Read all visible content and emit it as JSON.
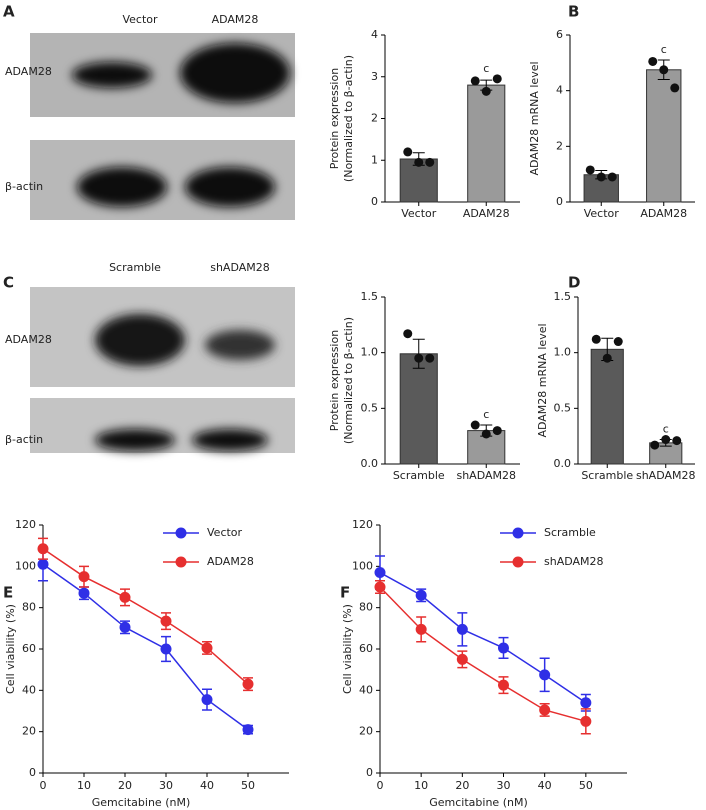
{
  "panel_labels": [
    "A",
    "B",
    "C",
    "D",
    "E",
    "F"
  ],
  "blots": [
    {
      "lanes": [
        "Vector",
        "ADAM28"
      ],
      "rows": [
        "ADAM28",
        "β-actin"
      ]
    },
    {
      "lanes": [
        "Scramble",
        "shADAM28"
      ],
      "rows": [
        "ADAM28",
        "β-actin"
      ]
    }
  ],
  "chart_data": [
    {
      "type": "bar",
      "ylabel": [
        "Protein expression",
        "(Normalized to β-actin)"
      ],
      "categories": [
        "Vector",
        "ADAM28"
      ],
      "values": [
        1.03,
        2.8
      ],
      "errors": [
        0.15,
        0.12
      ],
      "points": [
        [
          1.2,
          0.95,
          0.95
        ],
        [
          2.9,
          2.65,
          2.95
        ]
      ],
      "colors": [
        "#5a5a5a",
        "#9a9a9a"
      ],
      "annotation": "c",
      "ylim": [
        0,
        4
      ],
      "yticks": [
        0,
        1,
        2,
        3,
        4
      ]
    },
    {
      "type": "bar",
      "ylabel": [
        "ADAM28 mRNA level"
      ],
      "categories": [
        "Vector",
        "ADAM28"
      ],
      "values": [
        0.98,
        4.75
      ],
      "errors": [
        0.15,
        0.35
      ],
      "points": [
        [
          1.15,
          0.9,
          0.9
        ],
        [
          5.05,
          4.75,
          4.1
        ]
      ],
      "colors": [
        "#5a5a5a",
        "#9a9a9a"
      ],
      "annotation": "c",
      "ylim": [
        0,
        6
      ],
      "yticks": [
        0,
        2,
        4,
        6
      ]
    },
    {
      "type": "bar",
      "ylabel": [
        "Protein expression",
        "(Normalized to β-actin)"
      ],
      "categories": [
        "Scramble",
        "shADAM28"
      ],
      "values": [
        0.99,
        0.3
      ],
      "errors": [
        0.13,
        0.05
      ],
      "points": [
        [
          1.17,
          0.95,
          0.95
        ],
        [
          0.35,
          0.27,
          0.3
        ]
      ],
      "colors": [
        "#5a5a5a",
        "#9a9a9a"
      ],
      "annotation": "c",
      "ylim": [
        0,
        1.5
      ],
      "yticks": [
        {
          "value": 0,
          "label": "0.0"
        },
        0.5,
        {
          "value": 1,
          "label": "1.0"
        },
        1.5
      ]
    },
    {
      "type": "bar",
      "ylabel": [
        "ADAM28 mRNA level"
      ],
      "categories": [
        "Scramble",
        "shADAM28"
      ],
      "values": [
        1.03,
        0.19
      ],
      "errors": [
        0.1,
        0.03
      ],
      "points": [
        [
          1.12,
          0.95,
          1.1
        ],
        [
          0.17,
          0.22,
          0.21
        ]
      ],
      "colors": [
        "#5a5a5a",
        "#9a9a9a"
      ],
      "annotation": "c",
      "ylim": [
        0,
        1.5
      ],
      "yticks": [
        {
          "value": 0,
          "label": "0.0"
        },
        0.5,
        {
          "value": 1,
          "label": "1.0"
        },
        1.5
      ]
    },
    {
      "type": "line",
      "xlabel": "Gemcitabine (nM)",
      "ylabel": [
        "Cell viability (%)"
      ],
      "x": [
        0,
        10,
        20,
        30,
        40,
        50
      ],
      "xlim": [
        0,
        60
      ],
      "xticks": [
        0,
        10,
        20,
        30,
        40,
        50
      ],
      "ylim": [
        0,
        120
      ],
      "yticks": [
        0,
        20,
        40,
        60,
        80,
        100,
        120
      ],
      "series": [
        {
          "name": "Vector",
          "color": "#2f2fe6",
          "values": [
            101,
            87,
            70.5,
            60,
            35.5,
            21
          ],
          "errors": [
            8,
            3,
            3,
            6,
            5,
            2
          ]
        },
        {
          "name": "ADAM28",
          "color": "#e62f2f",
          "values": [
            108.5,
            95,
            85,
            73.5,
            60.5,
            43
          ],
          "errors": [
            5,
            5,
            4,
            4,
            3,
            3
          ]
        }
      ]
    },
    {
      "type": "line",
      "xlabel": "Gemcitabine (nM)",
      "ylabel": [
        "Cell viability (%)"
      ],
      "x": [
        0,
        10,
        20,
        30,
        40,
        50
      ],
      "xlim": [
        0,
        60
      ],
      "xticks": [
        0,
        10,
        20,
        30,
        40,
        50
      ],
      "ylim": [
        0,
        120
      ],
      "yticks": [
        0,
        20,
        40,
        60,
        80,
        100,
        120
      ],
      "series": [
        {
          "name": "Scramble",
          "color": "#2f2fe6",
          "values": [
            97,
            86,
            69.5,
            60.5,
            47.5,
            34
          ],
          "errors": [
            8,
            3,
            8,
            5,
            8,
            4
          ]
        },
        {
          "name": "shADAM28",
          "color": "#e62f2f",
          "values": [
            90,
            69.5,
            55,
            42.5,
            30.5,
            25
          ],
          "errors": [
            3,
            6,
            4,
            4,
            3,
            6
          ]
        }
      ]
    }
  ]
}
